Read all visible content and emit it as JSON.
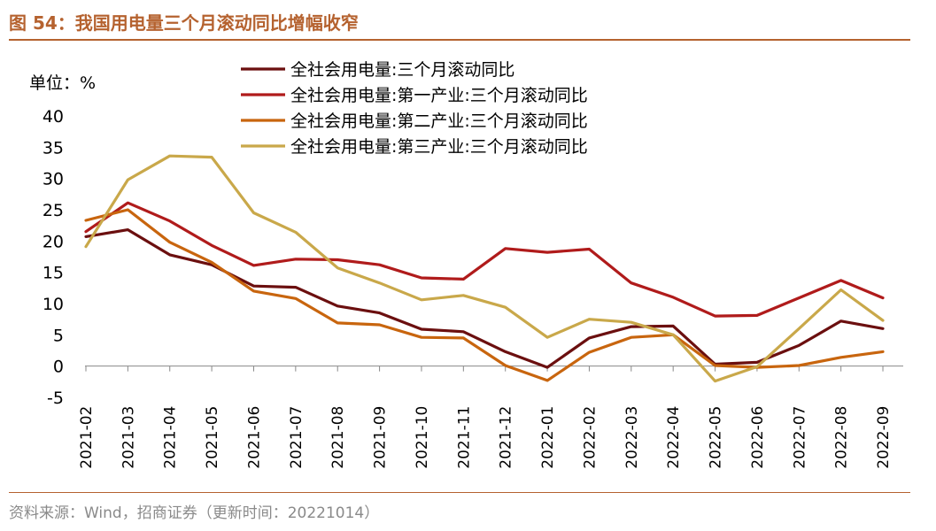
{
  "header": {
    "figure_title": "图 54：我国用电量三个月滚动同比增幅收窄"
  },
  "footer": {
    "source": "资料来源：Wind，招商证券（更新时间：20221014）"
  },
  "chart_data": {
    "type": "line",
    "title": "我国用电量三个月滚动同比增幅收窄",
    "unit_label": "单位：%",
    "ylim": [
      -5,
      40
    ],
    "y_ticks": [
      {
        "value": 40,
        "label": "40",
        "color": "#000000"
      },
      {
        "value": 35,
        "label": "35",
        "color": "#000000"
      },
      {
        "value": 30,
        "label": "30",
        "color": "#000000"
      },
      {
        "value": 25,
        "label": "25",
        "color": "#000000"
      },
      {
        "value": 20,
        "label": "20",
        "color": "#000000"
      },
      {
        "value": 15,
        "label": "15",
        "color": "#000000"
      },
      {
        "value": 10,
        "label": "10",
        "color": "#000000"
      },
      {
        "value": 5,
        "label": "5",
        "color": "#000000"
      },
      {
        "value": 0,
        "label": "0",
        "color": "#000000"
      },
      {
        "value": -5,
        "label": "-5",
        "color": "#ff0000"
      }
    ],
    "categories": [
      "2021-02",
      "2021-03",
      "2021-04",
      "2021-05",
      "2021-06",
      "2021-07",
      "2021-08",
      "2021-09",
      "2021-10",
      "2021-11",
      "2021-12",
      "2022-01",
      "2022-02",
      "2022-03",
      "2022-04",
      "2022-05",
      "2022-06",
      "2022-07",
      "2022-08",
      "2022-09"
    ],
    "series": [
      {
        "name": "全社会用电量:三个月滚动同比",
        "color": "#6b0f0f",
        "values": [
          20.7,
          21.8,
          17.8,
          16.2,
          12.8,
          12.6,
          9.6,
          8.5,
          5.9,
          5.5,
          2.3,
          -0.2,
          4.5,
          6.3,
          6.4,
          0.3,
          0.6,
          3.3,
          7.2,
          6.0
        ]
      },
      {
        "name": "全社会用电量:第一产业:三个月滚动同比",
        "color": "#b01b1b",
        "values": [
          21.5,
          26.1,
          23.2,
          19.3,
          16.1,
          17.1,
          17.0,
          16.2,
          14.1,
          13.9,
          18.8,
          18.2,
          18.7,
          13.3,
          11.0,
          8.0,
          8.1,
          10.9,
          13.7,
          10.9
        ]
      },
      {
        "name": "全社会用电量:第二产业:三个月滚动同比",
        "color": "#c8650e",
        "values": [
          23.3,
          25.0,
          19.8,
          16.6,
          12.0,
          10.8,
          6.9,
          6.6,
          4.6,
          4.5,
          0.1,
          -2.3,
          2.2,
          4.6,
          5.0,
          0.1,
          -0.2,
          0.1,
          1.4,
          2.3
        ]
      },
      {
        "name": "全社会用电量:第三产业:三个月滚动同比",
        "color": "#c9a84a",
        "values": [
          19.1,
          29.8,
          33.6,
          33.4,
          24.5,
          21.4,
          15.7,
          13.3,
          10.6,
          11.3,
          9.4,
          4.6,
          7.5,
          7.0,
          5.0,
          -2.4,
          -0.1,
          6.0,
          12.2,
          7.3
        ]
      }
    ]
  }
}
